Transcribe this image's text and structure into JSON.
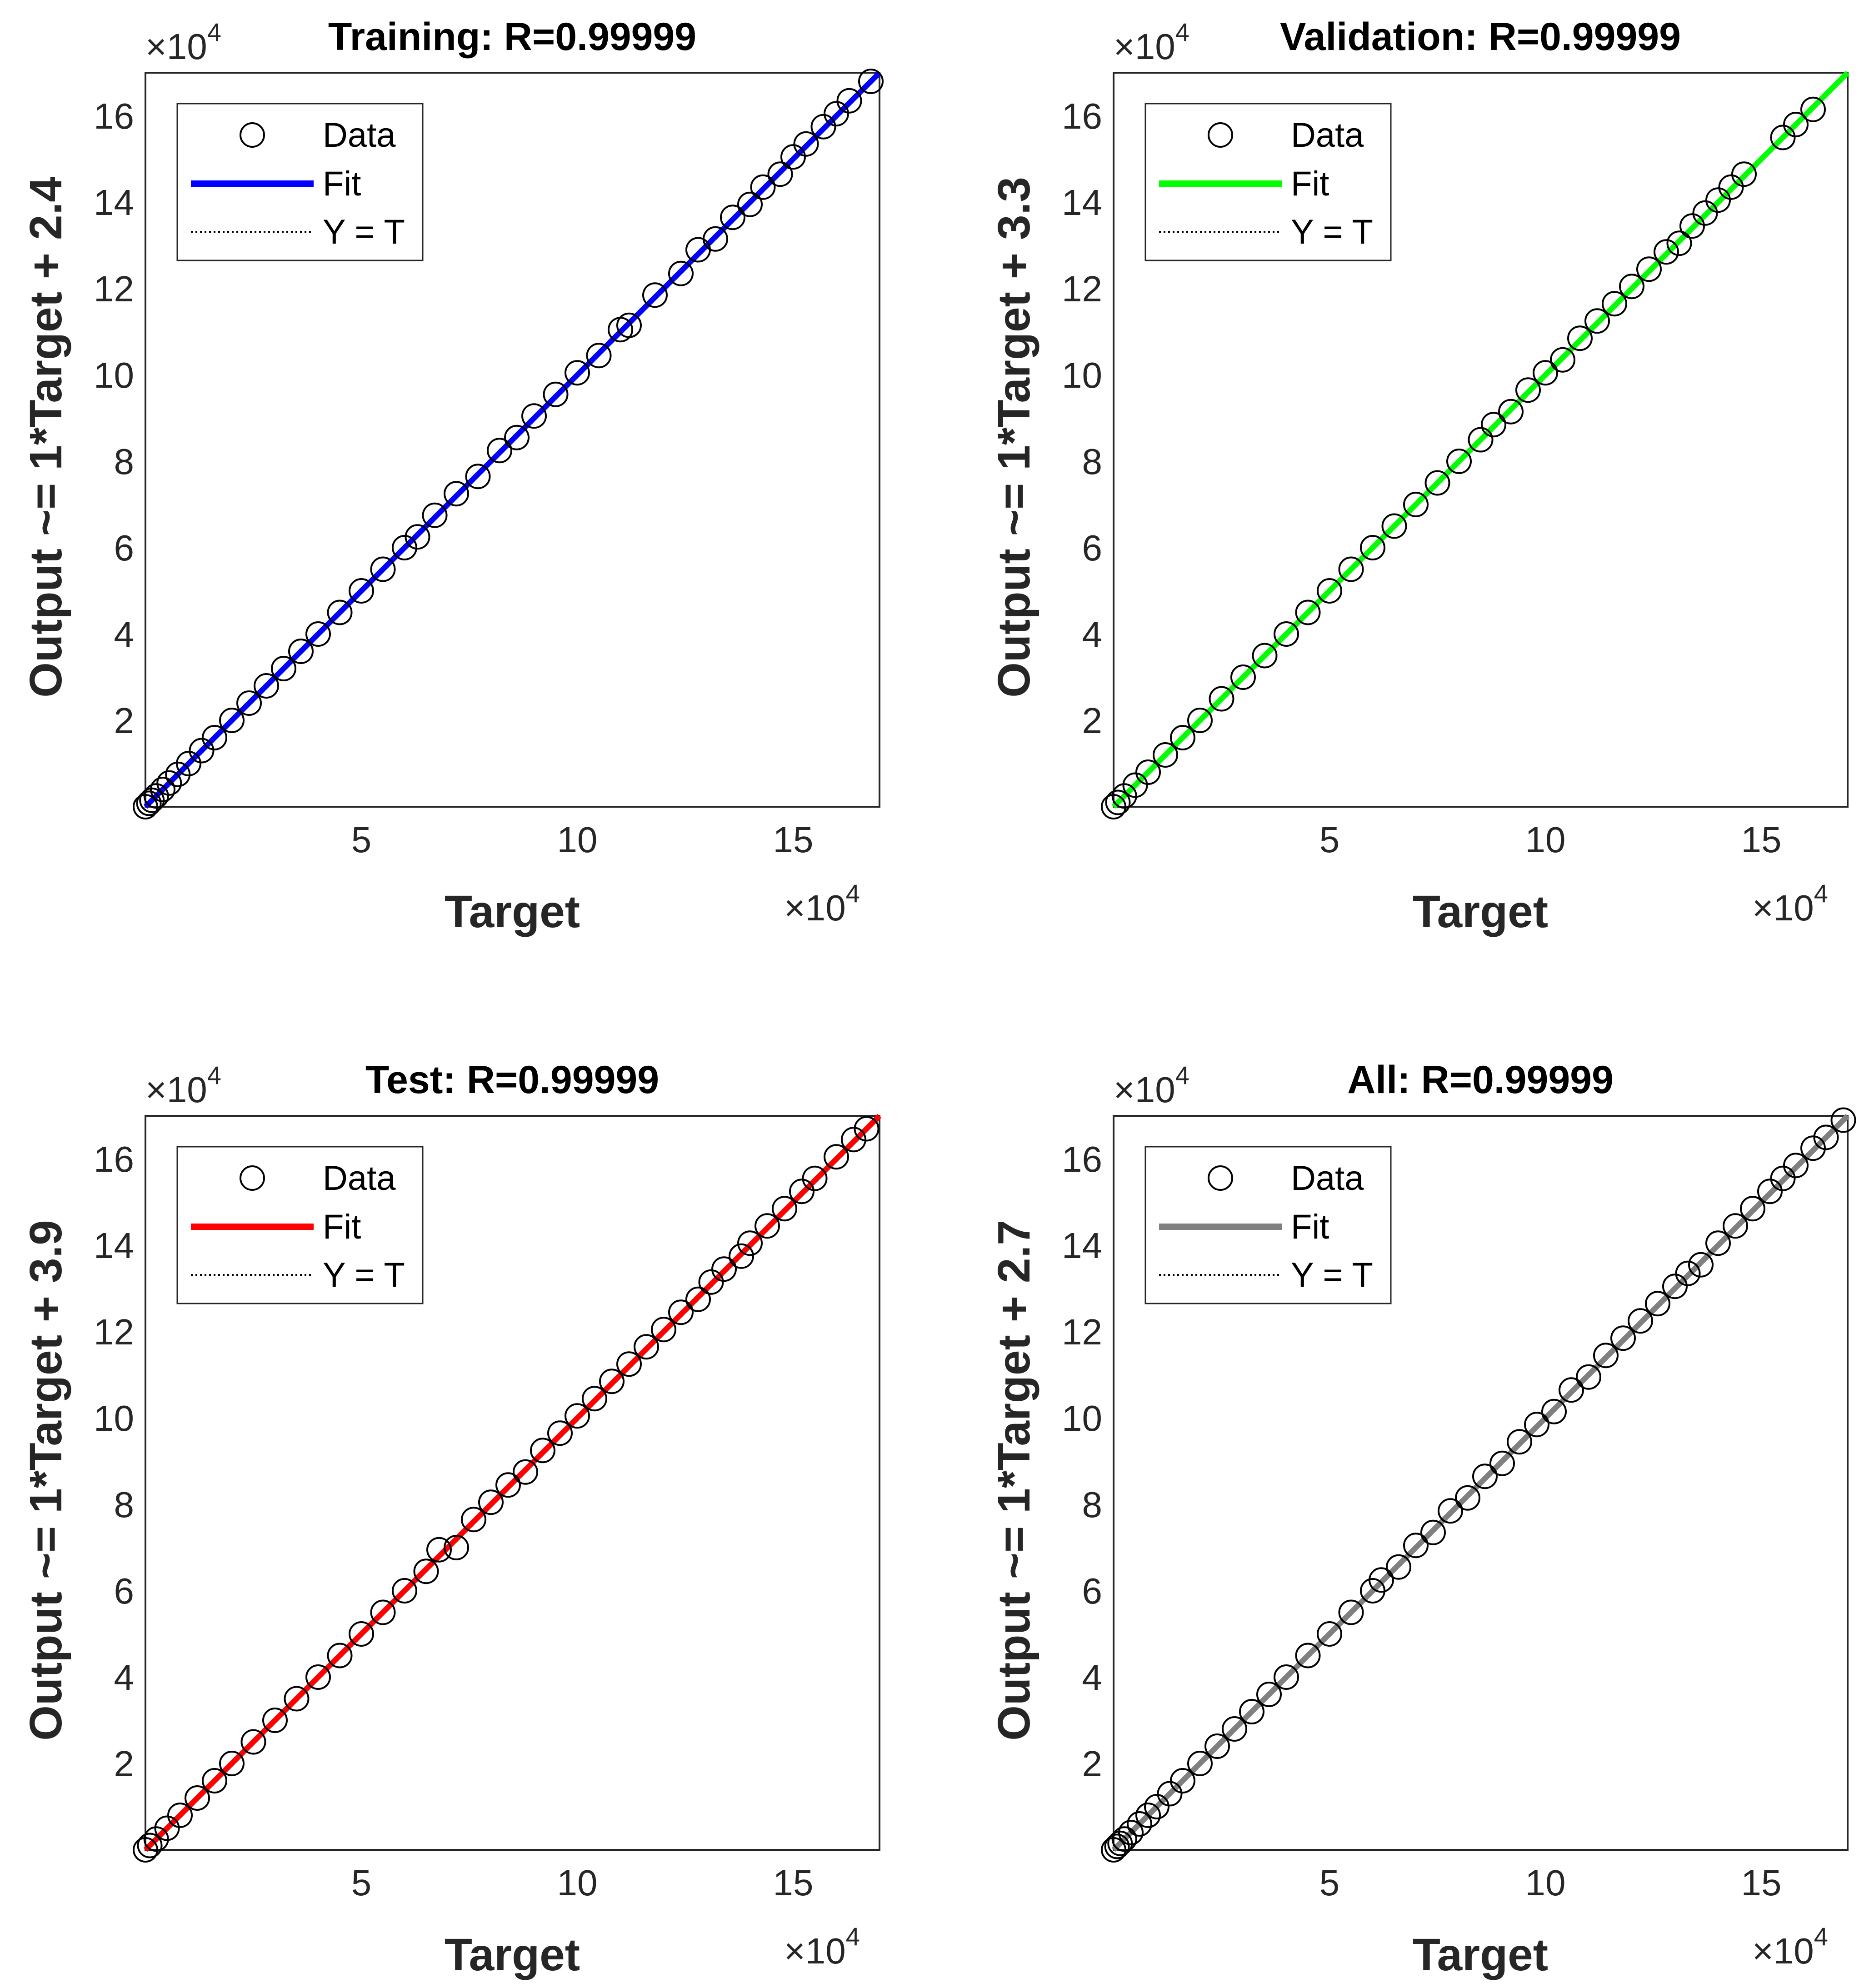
{
  "chart_data": [
    {
      "type": "scatter",
      "title": "Training: R=0.99999",
      "xlabel": "Target",
      "ylabel": "Output ~= 1*Target + 2.4",
      "xlim": [
        0,
        170000
      ],
      "ylim": [
        0,
        170000
      ],
      "xticks": [
        50000,
        100000,
        150000
      ],
      "xtick_labels": [
        "5",
        "10",
        "15"
      ],
      "yticks": [
        20000,
        40000,
        60000,
        80000,
        100000,
        120000,
        140000,
        160000
      ],
      "ytick_labels": [
        "2",
        "4",
        "6",
        "8",
        "10",
        "12",
        "14",
        "16"
      ],
      "x_exponent": {
        "base": "×10",
        "power": "4"
      },
      "y_exponent": {
        "base": "×10",
        "power": "4"
      },
      "fit": {
        "slope": 1,
        "intercept": 2.4,
        "color": "#0000ff"
      },
      "legend": {
        "position": "top-left",
        "entries": [
          {
            "label": "Data",
            "marker": "circle-open"
          },
          {
            "label": "Fit",
            "line": "solid",
            "color": "#0000ff"
          },
          {
            "label": "Y = T",
            "line": "dotted",
            "color": "#000000"
          }
        ]
      },
      "series": [
        {
          "name": "Data",
          "x": [
            0,
            800,
            1500,
            2500,
            4000,
            5500,
            7500,
            10000,
            13000,
            16000,
            20000,
            24000,
            28000,
            32000,
            36000,
            40000,
            45000,
            50000,
            55000,
            60000,
            63000,
            67000,
            72000,
            77000,
            82000,
            86000,
            90000,
            95000,
            100000,
            105000,
            110000,
            112000,
            118000,
            124000,
            128000,
            132000,
            136000,
            140000,
            143000,
            147000,
            150000,
            153000,
            157000,
            160000,
            163000,
            168000
          ],
          "y": [
            0,
            800,
            1500,
            2500,
            4000,
            5500,
            7500,
            10000,
            13000,
            16000,
            20000,
            24000,
            28000,
            32000,
            36000,
            40000,
            45000,
            50000,
            55000,
            60000,
            62500,
            67500,
            72500,
            76500,
            82500,
            85500,
            90500,
            95500,
            100500,
            104500,
            110500,
            111500,
            118500,
            123500,
            129000,
            131500,
            136500,
            139500,
            143500,
            146500,
            150500,
            153500,
            157500,
            160500,
            163500,
            168000
          ]
        }
      ]
    },
    {
      "type": "scatter",
      "title": "Validation: R=0.99999",
      "xlabel": "Target",
      "ylabel": "Output ~= 1*Target + 3.3",
      "xlim": [
        0,
        170000
      ],
      "ylim": [
        0,
        170000
      ],
      "xticks": [
        50000,
        100000,
        150000
      ],
      "xtick_labels": [
        "5",
        "10",
        "15"
      ],
      "yticks": [
        20000,
        40000,
        60000,
        80000,
        100000,
        120000,
        140000,
        160000
      ],
      "ytick_labels": [
        "2",
        "4",
        "6",
        "8",
        "10",
        "12",
        "14",
        "16"
      ],
      "x_exponent": {
        "base": "×10",
        "power": "4"
      },
      "y_exponent": {
        "base": "×10",
        "power": "4"
      },
      "fit": {
        "slope": 1,
        "intercept": 3.3,
        "color": "#00ff00"
      },
      "legend": {
        "position": "top-left",
        "entries": [
          {
            "label": "Data",
            "marker": "circle-open"
          },
          {
            "label": "Fit",
            "line": "solid",
            "color": "#00ff00"
          },
          {
            "label": "Y = T",
            "line": "dotted",
            "color": "#000000"
          }
        ]
      },
      "series": [
        {
          "name": "Data",
          "x": [
            0,
            1000,
            2500,
            5000,
            8000,
            12000,
            16000,
            20000,
            25000,
            30000,
            35000,
            40000,
            45000,
            50000,
            55000,
            60000,
            65000,
            70000,
            75000,
            80000,
            85000,
            88000,
            92000,
            96000,
            100000,
            104000,
            108000,
            112000,
            116000,
            120000,
            124000,
            128000,
            131000,
            134000,
            137000,
            140000,
            143000,
            146000,
            155000,
            158000,
            162000
          ],
          "y": [
            0,
            1000,
            2500,
            5000,
            8000,
            12000,
            16000,
            20000,
            25000,
            30000,
            35000,
            40000,
            45000,
            50000,
            55000,
            60000,
            65000,
            70000,
            75000,
            80000,
            85000,
            88500,
            91500,
            96500,
            100500,
            103500,
            108500,
            112500,
            116500,
            120500,
            124500,
            128500,
            130500,
            134500,
            137500,
            140500,
            143500,
            146500,
            155000,
            158000,
            161500
          ]
        }
      ]
    },
    {
      "type": "scatter",
      "title": "Test: R=0.99999",
      "xlabel": "Target",
      "ylabel": "Output ~= 1*Target + 3.9",
      "xlim": [
        0,
        170000
      ],
      "ylim": [
        0,
        170000
      ],
      "xticks": [
        50000,
        100000,
        150000
      ],
      "xtick_labels": [
        "5",
        "10",
        "15"
      ],
      "yticks": [
        20000,
        40000,
        60000,
        80000,
        100000,
        120000,
        140000,
        160000
      ],
      "ytick_labels": [
        "2",
        "4",
        "6",
        "8",
        "10",
        "12",
        "14",
        "16"
      ],
      "x_exponent": {
        "base": "×10",
        "power": "4"
      },
      "y_exponent": {
        "base": "×10",
        "power": "4"
      },
      "fit": {
        "slope": 1,
        "intercept": 3.9,
        "color": "#ff0000"
      },
      "legend": {
        "position": "top-left",
        "entries": [
          {
            "label": "Data",
            "marker": "circle-open"
          },
          {
            "label": "Fit",
            "line": "solid",
            "color": "#ff0000"
          },
          {
            "label": "Y = T",
            "line": "dotted",
            "color": "#000000"
          }
        ]
      },
      "series": [
        {
          "name": "Data",
          "x": [
            0,
            1000,
            2500,
            5000,
            8000,
            12000,
            16000,
            20000,
            25000,
            30000,
            35000,
            40000,
            45000,
            50000,
            55000,
            60000,
            65000,
            68000,
            72000,
            76000,
            80000,
            84000,
            88000,
            92000,
            96000,
            100000,
            104000,
            108000,
            112000,
            116000,
            120000,
            124000,
            128000,
            131000,
            134000,
            138000,
            140000,
            144000,
            148000,
            152000,
            155000,
            160000,
            164000,
            167000
          ],
          "y": [
            0,
            1000,
            2500,
            5000,
            8000,
            12000,
            16000,
            20000,
            25000,
            30000,
            35000,
            40000,
            45000,
            50000,
            55000,
            60000,
            64500,
            69500,
            70000,
            76500,
            80500,
            84500,
            87500,
            92500,
            96500,
            100500,
            104500,
            108500,
            112500,
            116500,
            120500,
            124500,
            127500,
            131500,
            134500,
            137500,
            140500,
            144500,
            148500,
            152500,
            155500,
            160500,
            164500,
            167000
          ]
        }
      ]
    },
    {
      "type": "scatter",
      "title": "All: R=0.99999",
      "xlabel": "Target",
      "ylabel": "Output ~= 1*Target + 2.7",
      "xlim": [
        0,
        170000
      ],
      "ylim": [
        0,
        170000
      ],
      "xticks": [
        50000,
        100000,
        150000
      ],
      "xtick_labels": [
        "5",
        "10",
        "15"
      ],
      "yticks": [
        20000,
        40000,
        60000,
        80000,
        100000,
        120000,
        140000,
        160000
      ],
      "ytick_labels": [
        "2",
        "4",
        "6",
        "8",
        "10",
        "12",
        "14",
        "16"
      ],
      "x_exponent": {
        "base": "×10",
        "power": "4"
      },
      "y_exponent": {
        "base": "×10",
        "power": "4"
      },
      "fit": {
        "slope": 1,
        "intercept": 2.7,
        "color": "#808080"
      },
      "legend": {
        "position": "top-left",
        "entries": [
          {
            "label": "Data",
            "marker": "circle-open"
          },
          {
            "label": "Fit",
            "line": "solid",
            "color": "#808080"
          },
          {
            "label": "Y = T",
            "line": "dotted",
            "color": "#000000"
          }
        ]
      },
      "series": [
        {
          "name": "Data",
          "x": [
            0,
            800,
            1500,
            2500,
            4000,
            6000,
            8000,
            10000,
            13000,
            16000,
            20000,
            24000,
            28000,
            32000,
            36000,
            40000,
            45000,
            50000,
            55000,
            60000,
            62000,
            66000,
            70000,
            74000,
            78000,
            82000,
            86000,
            90000,
            94000,
            98000,
            102000,
            106000,
            110000,
            114000,
            118000,
            122000,
            126000,
            130000,
            133000,
            136000,
            140000,
            144000,
            148000,
            152000,
            155000,
            158000,
            162000,
            165000,
            169000
          ],
          "y": [
            0,
            800,
            1500,
            2500,
            4000,
            6000,
            8000,
            10000,
            13000,
            16000,
            20000,
            24000,
            28000,
            32000,
            36000,
            40000,
            45000,
            50000,
            55000,
            60000,
            62500,
            65500,
            70500,
            73500,
            78500,
            81500,
            86500,
            89500,
            94500,
            98500,
            101500,
            106500,
            109500,
            114500,
            118500,
            122500,
            126500,
            130500,
            133500,
            135500,
            140500,
            144500,
            148500,
            152500,
            155500,
            158500,
            162500,
            165000,
            169000
          ]
        }
      ]
    }
  ]
}
